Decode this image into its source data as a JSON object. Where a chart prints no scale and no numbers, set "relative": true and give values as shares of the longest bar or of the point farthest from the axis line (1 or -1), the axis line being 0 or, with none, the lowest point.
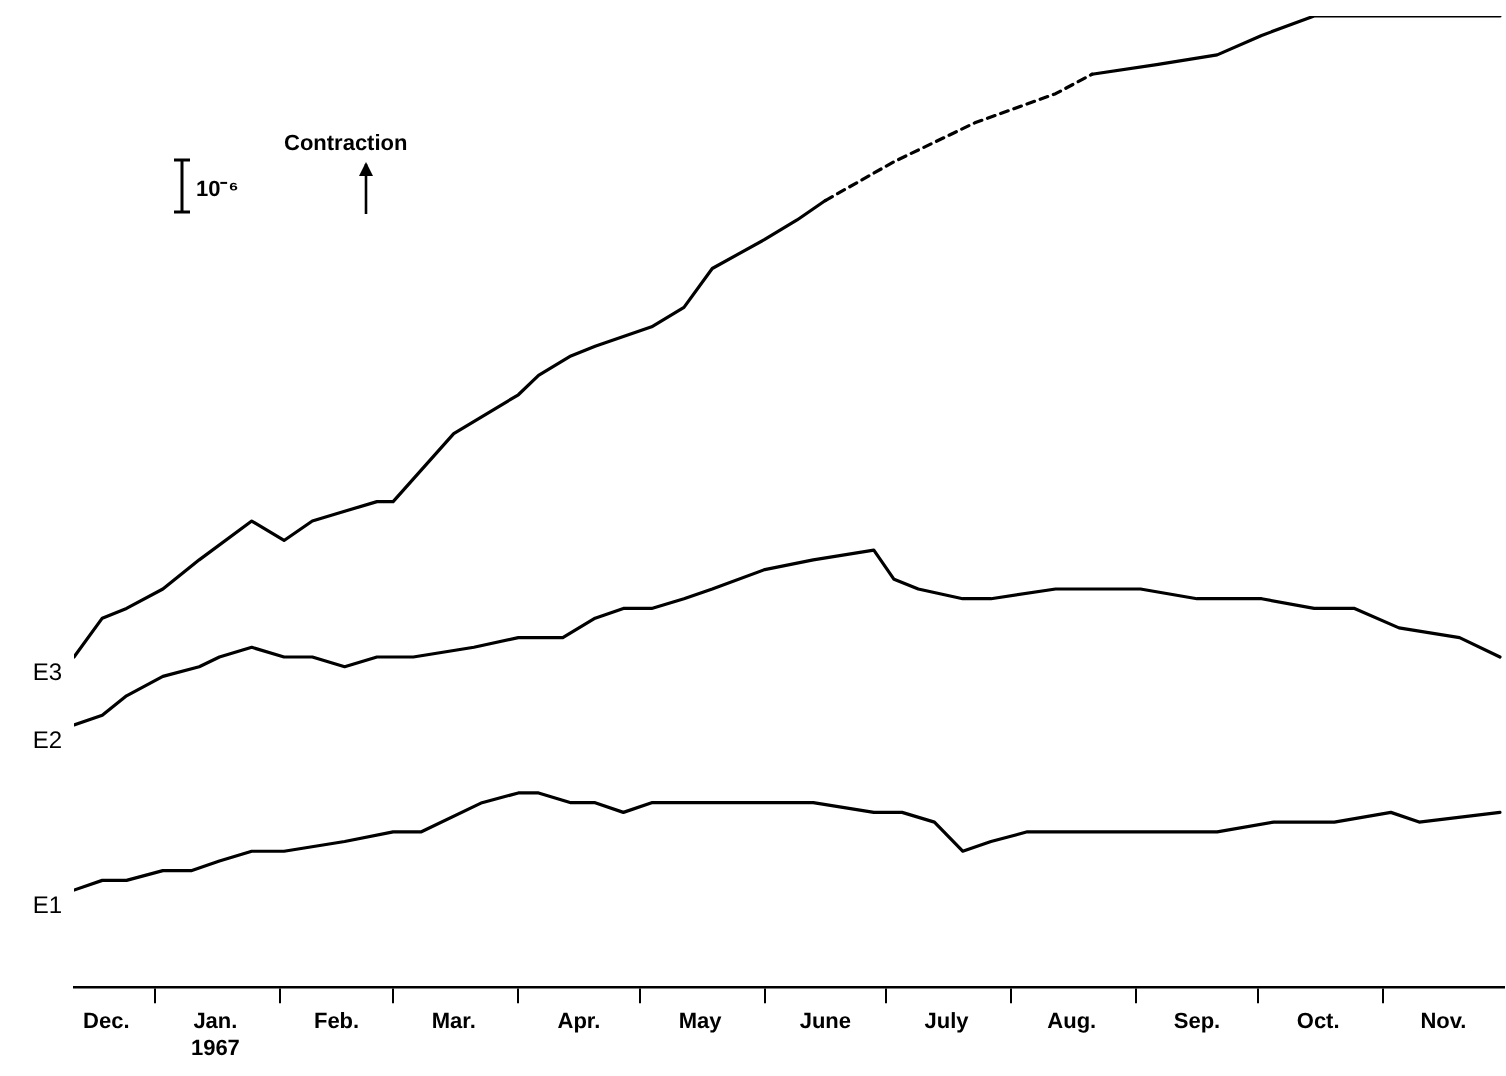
{
  "chart_data": {
    "type": "line",
    "relative": true,
    "xlim": [
      "1966-12-12",
      "1967-12-01"
    ],
    "xticks": [
      {
        "value": "1967-01-01",
        "label": null
      },
      {
        "value": "1967-02-01",
        "label": null
      },
      {
        "value": "1967-03-01",
        "label": null
      },
      {
        "value": "1967-04-01",
        "label": null
      },
      {
        "value": "1967-05-01",
        "label": null
      },
      {
        "value": "1967-06-01",
        "label": null
      },
      {
        "value": "1967-07-01",
        "label": null
      },
      {
        "value": "1967-08-01",
        "label": null
      },
      {
        "value": "1967-09-01",
        "label": null
      },
      {
        "value": "1967-10-01",
        "label": null
      },
      {
        "value": "1967-11-01",
        "label": null
      },
      {
        "value": "1966-12-20",
        "label": "Dec."
      },
      {
        "value": "1967-01-16",
        "label": "Jan.\n1967"
      },
      {
        "value": "1967-02-15",
        "label": "Feb."
      },
      {
        "value": "1967-03-16",
        "label": "Mar."
      },
      {
        "value": "1967-04-16",
        "label": "Apr."
      },
      {
        "value": "1967-05-16",
        "label": "May"
      },
      {
        "value": "1967-06-16",
        "label": "June"
      },
      {
        "value": "1967-07-16",
        "label": "July"
      },
      {
        "value": "1967-08-16",
        "label": "Aug."
      },
      {
        "value": "1967-09-16",
        "label": "Sep."
      },
      {
        "value": "1967-10-16",
        "label": "Oct."
      },
      {
        "value": "1967-11-16",
        "label": "Nov."
      }
    ],
    "grid": false,
    "legend": false,
    "marker": "none",
    "line_style": "solid",
    "annotations": [
      "Contraction",
      "10⁻⁶"
    ],
    "series": [
      {
        "name": "E1",
        "color": "#000000",
        "x": [
          "1966-12-12",
          "1966-12-19",
          "1966-12-25",
          "1967-01-03",
          "1967-01-10",
          "1967-01-17",
          "1967-01-25",
          "1967-02-02",
          "1967-02-17",
          "1967-03-01",
          "1967-03-08",
          "1967-03-23",
          "1967-04-01",
          "1967-04-06",
          "1967-04-14",
          "1967-04-20",
          "1967-04-27",
          "1967-05-04",
          "1967-05-12",
          "1967-06-01",
          "1967-06-13",
          "1967-06-28",
          "1967-07-05",
          "1967-07-13",
          "1967-07-20",
          "1967-07-27",
          "1967-08-05",
          "1967-08-17",
          "1967-09-02",
          "1967-09-06",
          "1967-09-21",
          "1967-10-05",
          "1967-10-20",
          "1967-11-03",
          "1967-11-10",
          "1967-11-30"
        ],
        "values": [
          0.1,
          0.11,
          0.11,
          0.12,
          0.12,
          0.13,
          0.14,
          0.14,
          0.15,
          0.16,
          0.16,
          0.19,
          0.2,
          0.2,
          0.19,
          0.19,
          0.18,
          0.19,
          0.19,
          0.19,
          0.19,
          0.18,
          0.18,
          0.17,
          0.14,
          0.15,
          0.16,
          0.16,
          0.16,
          0.16,
          0.16,
          0.17,
          0.17,
          0.18,
          0.17,
          0.18
        ]
      },
      {
        "name": "E2",
        "color": "#000000",
        "x": [
          "1966-12-12",
          "1966-12-19",
          "1966-12-25",
          "1967-01-03",
          "1967-01-12",
          "1967-01-17",
          "1967-01-25",
          "1967-02-02",
          "1967-02-09",
          "1967-02-17",
          "1967-02-25",
          "1967-03-06",
          "1967-03-21",
          "1967-04-01",
          "1967-04-12",
          "1967-04-20",
          "1967-04-27",
          "1967-05-04",
          "1967-05-12",
          "1967-05-19",
          "1967-06-01",
          "1967-06-13",
          "1967-06-28",
          "1967-07-03",
          "1967-07-09",
          "1967-07-20",
          "1967-07-27",
          "1967-08-12",
          "1967-09-02",
          "1967-09-16",
          "1967-10-02",
          "1967-10-15",
          "1967-10-25",
          "1967-11-05",
          "1967-11-20",
          "1967-11-30"
        ],
        "values": [
          0.27,
          0.28,
          0.3,
          0.32,
          0.33,
          0.34,
          0.35,
          0.34,
          0.34,
          0.33,
          0.34,
          0.34,
          0.35,
          0.36,
          0.36,
          0.38,
          0.39,
          0.39,
          0.4,
          0.41,
          0.43,
          0.44,
          0.45,
          0.42,
          0.41,
          0.4,
          0.4,
          0.41,
          0.41,
          0.4,
          0.4,
          0.39,
          0.39,
          0.37,
          0.36,
          0.34
        ]
      },
      {
        "name": "E3",
        "color": "#000000",
        "x": [
          "1966-12-12",
          "1966-12-19",
          "1966-12-25",
          "1967-01-03",
          "1967-01-12",
          "1967-01-25",
          "1967-02-02",
          "1967-02-09",
          "1967-02-17",
          "1967-02-25",
          "1967-03-01",
          "1967-03-16",
          "1967-04-01",
          "1967-04-06",
          "1967-04-14",
          "1967-04-20",
          "1967-04-27",
          "1967-05-04",
          "1967-05-12",
          "1967-05-19",
          "1967-06-01",
          "1967-06-09",
          "1967-06-16"
        ],
        "values": [
          0.34,
          0.38,
          0.39,
          0.41,
          0.44,
          0.48,
          0.46,
          0.48,
          0.49,
          0.5,
          0.5,
          0.57,
          0.61,
          0.63,
          0.65,
          0.66,
          0.67,
          0.68,
          0.7,
          0.74,
          0.77,
          0.79,
          0.81
        ]
      },
      {
        "color": "#000000",
        "line_style": "dashed",
        "x": [
          "1967-06-16",
          "1967-07-03",
          "1967-07-23",
          "1967-08-12",
          "1967-08-21"
        ],
        "values": [
          0.81,
          0.85,
          0.89,
          0.92,
          0.94
        ]
      },
      {
        "color": "#000000",
        "x": [
          "1967-08-21",
          "1967-09-06",
          "1967-09-21",
          "1967-10-02",
          "1967-10-15",
          "1967-10-30",
          "1967-11-15",
          "1967-11-30"
        ],
        "values": [
          0.94,
          0.95,
          0.96,
          0.98,
          1,
          1,
          1,
          1
        ]
      }
    ]
  }
}
